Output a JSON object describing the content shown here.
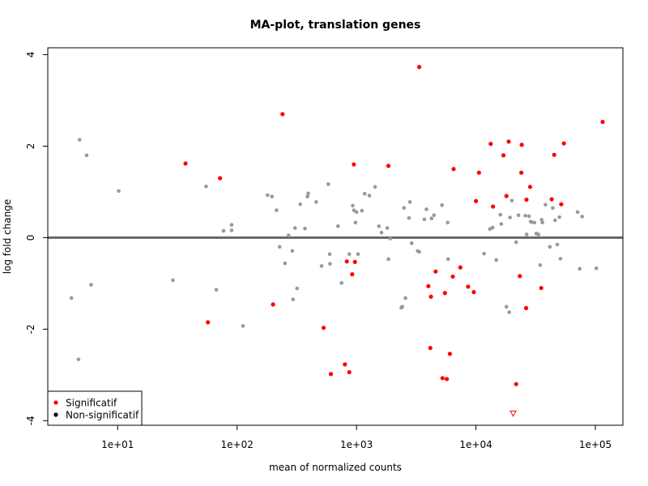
{
  "chart_data": {
    "type": "scatter",
    "title": "MA-plot, translation genes",
    "xlabel": "mean of normalized counts",
    "ylabel": "log fold change",
    "x_scale": "log10",
    "xlim": [
      2.6,
      170000
    ],
    "ylim": [
      -4.1,
      4.15
    ],
    "x_ticks": [
      10,
      100,
      1000,
      10000,
      100000
    ],
    "x_tick_labels": [
      "1e+01",
      "1e+02",
      "1e+03",
      "1e+04",
      "1e+05"
    ],
    "y_ticks": [
      -4,
      -2,
      0,
      2,
      4
    ],
    "y_tick_labels": [
      "-4",
      "-2",
      "0",
      "2",
      "4"
    ],
    "reference_line_y": 0,
    "grid": false,
    "legend": {
      "position": "bottom-left",
      "entries": [
        "Significatif",
        "Non-significatif"
      ]
    },
    "colors": {
      "significant": "#ff0000",
      "nonsignificant": "#999999",
      "reference_line": "#666666"
    },
    "series": [
      {
        "name": "Significatif",
        "points": [
          [
            3350,
            3.73
          ],
          [
            240,
            2.7
          ],
          [
            115000,
            2.53
          ],
          [
            37,
            1.62
          ],
          [
            72,
            1.3
          ],
          [
            950,
            1.6
          ],
          [
            1850,
            1.57
          ],
          [
            6500,
            1.5
          ],
          [
            10600,
            1.42
          ],
          [
            13300,
            2.05
          ],
          [
            18800,
            2.1
          ],
          [
            24200,
            2.03
          ],
          [
            54500,
            2.06
          ],
          [
            17000,
            1.8
          ],
          [
            45200,
            1.81
          ],
          [
            24000,
            1.42
          ],
          [
            28400,
            1.11
          ],
          [
            18000,
            0.91
          ],
          [
            26500,
            0.83
          ],
          [
            43100,
            0.84
          ],
          [
            10000,
            0.8
          ],
          [
            13900,
            0.68
          ],
          [
            51800,
            0.73
          ],
          [
            57,
            -1.85
          ],
          [
            200,
            -1.46
          ],
          [
            530,
            -1.97
          ],
          [
            920,
            -0.8
          ],
          [
            830,
            -0.52
          ],
          [
            970,
            -0.53
          ],
          [
            4000,
            -1.06
          ],
          [
            4200,
            -1.29
          ],
          [
            4600,
            -0.74
          ],
          [
            7400,
            -0.65
          ],
          [
            5500,
            -1.21
          ],
          [
            6400,
            -0.85
          ],
          [
            8600,
            -1.07
          ],
          [
            9600,
            -1.19
          ],
          [
            23300,
            -0.84
          ],
          [
            35200,
            -1.1
          ],
          [
            26300,
            -1.54
          ],
          [
            4150,
            -2.41
          ],
          [
            6050,
            -2.54
          ],
          [
            610,
            -2.98
          ],
          [
            800,
            -2.77
          ],
          [
            870,
            -2.94
          ],
          [
            5250,
            -3.07
          ],
          [
            5700,
            -3.09
          ],
          [
            21700,
            -3.2
          ]
        ]
      },
      {
        "name": "Non-significatif",
        "points": [
          [
            4.8,
            2.14
          ],
          [
            5.5,
            1.8
          ],
          [
            10.2,
            1.02
          ],
          [
            4.1,
            -1.32
          ],
          [
            6.0,
            -1.03
          ],
          [
            4.7,
            -2.66
          ],
          [
            29,
            -0.93
          ],
          [
            55,
            1.12
          ],
          [
            67,
            -1.14
          ],
          [
            77,
            0.15
          ],
          [
            90,
            0.16
          ],
          [
            90,
            0.28
          ],
          [
            112,
            -1.93
          ],
          [
            180,
            0.93
          ],
          [
            196,
            0.9
          ],
          [
            214,
            0.6
          ],
          [
            227,
            -0.2
          ],
          [
            252,
            -0.56
          ],
          [
            270,
            0.05
          ],
          [
            290,
            -0.29
          ],
          [
            294,
            -1.35
          ],
          [
            306,
            0.21
          ],
          [
            318,
            -1.11
          ],
          [
            338,
            0.73
          ],
          [
            370,
            0.2
          ],
          [
            389,
            0.9
          ],
          [
            394,
            0.97
          ],
          [
            460,
            0.78
          ],
          [
            510,
            -0.62
          ],
          [
            580,
            1.17
          ],
          [
            596,
            -0.36
          ],
          [
            600,
            -0.57
          ],
          [
            700,
            0.25
          ],
          [
            750,
            -0.99
          ],
          [
            870,
            -0.36
          ],
          [
            930,
            0.7
          ],
          [
            950,
            0.6
          ],
          [
            980,
            0.33
          ],
          [
            1000,
            0.56
          ],
          [
            1030,
            -0.36
          ],
          [
            1110,
            0.59
          ],
          [
            1170,
            0.96
          ],
          [
            1280,
            0.92
          ],
          [
            1430,
            1.11
          ],
          [
            1540,
            0.25
          ],
          [
            1620,
            0.11
          ],
          [
            1810,
            0.21
          ],
          [
            1850,
            -0.47
          ],
          [
            1920,
            -0.02
          ],
          [
            2370,
            -1.53
          ],
          [
            2420,
            -1.51
          ],
          [
            2500,
            0.65
          ],
          [
            2570,
            -1.32
          ],
          [
            2750,
            0.43
          ],
          [
            2800,
            0.78
          ],
          [
            2900,
            -0.12
          ],
          [
            3250,
            -0.29
          ],
          [
            3350,
            -0.31
          ],
          [
            3700,
            0.4
          ],
          [
            3850,
            0.62
          ],
          [
            4250,
            0.42
          ],
          [
            4450,
            0.49
          ],
          [
            5200,
            0.71
          ],
          [
            5800,
            0.33
          ],
          [
            5850,
            -0.47
          ],
          [
            11700,
            -0.35
          ],
          [
            13100,
            0.19
          ],
          [
            13800,
            0.22
          ],
          [
            14800,
            -0.49
          ],
          [
            16000,
            0.5
          ],
          [
            16300,
            0.3
          ],
          [
            18000,
            -1.51
          ],
          [
            19000,
            -1.63
          ],
          [
            19300,
            0.44
          ],
          [
            20000,
            0.81
          ],
          [
            21700,
            -0.1
          ],
          [
            22700,
            0.49
          ],
          [
            25900,
            0.48
          ],
          [
            26600,
            0.07
          ],
          [
            27800,
            0.47
          ],
          [
            28700,
            0.35
          ],
          [
            29400,
            0.34
          ],
          [
            30900,
            0.33
          ],
          [
            32000,
            0.09
          ],
          [
            33400,
            0.07
          ],
          [
            34500,
            -0.6
          ],
          [
            35500,
            0.39
          ],
          [
            36000,
            0.33
          ],
          [
            38200,
            0.72
          ],
          [
            41600,
            -0.2
          ],
          [
            44000,
            0.65
          ],
          [
            46000,
            0.38
          ],
          [
            48000,
            -0.15
          ],
          [
            50000,
            0.45
          ],
          [
            51000,
            -0.46
          ],
          [
            71000,
            0.56
          ],
          [
            74000,
            -0.68
          ],
          [
            77500,
            0.46
          ],
          [
            102000,
            -0.67
          ]
        ]
      },
      {
        "name": "",
        "marker": "triangle-down",
        "points": [
          [
            20500,
            -3.84
          ]
        ]
      }
    ]
  }
}
